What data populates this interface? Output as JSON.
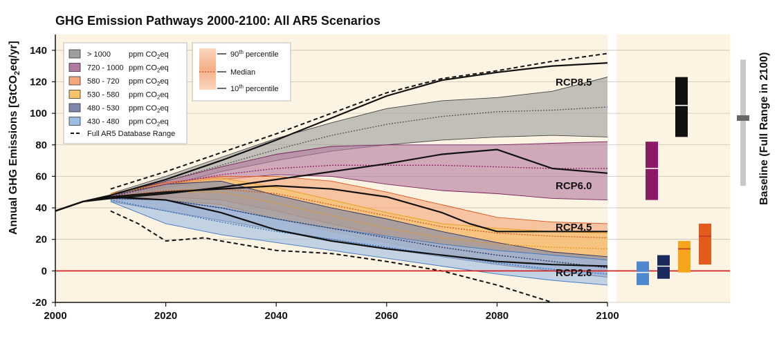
{
  "chart_data": {
    "type": "area",
    "title": "GHG Emission Pathways 2000-2100: All AR5 Scenarios",
    "ylabel": "Annual GHG Emissions [GtCO2eq/yr]",
    "ylabel_parts": {
      "pre": "Annual GHG Emissions [GtCO",
      "sub": "2",
      "post": "eq/yr]"
    },
    "right_label": "Baseline (Full Range in 2100)",
    "xlim": [
      2000,
      2100
    ],
    "ylim": [
      -20,
      150
    ],
    "xticks": [
      2000,
      2020,
      2040,
      2060,
      2080,
      2100
    ],
    "yticks": [
      -20,
      0,
      20,
      40,
      60,
      80,
      100,
      120,
      140
    ],
    "background": "#fdf3e3",
    "legend": {
      "placement": "top-left",
      "items": [
        {
          "range": "> 1000",
          "unit": "ppm CO",
          "sub": "2",
          "tail": "eq",
          "color": "#9e9e9e"
        },
        {
          "range": "720 - 1000",
          "unit": "ppm CO",
          "sub": "2",
          "tail": "eq",
          "color": "#b37aa1"
        },
        {
          "range": "580 - 720",
          "unit": "ppm CO",
          "sub": "2",
          "tail": "eq",
          "color": "#f4a77b"
        },
        {
          "range": "530 - 580",
          "unit": "ppm CO",
          "sub": "2",
          "tail": "eq",
          "color": "#f7c46a"
        },
        {
          "range": "480 - 530",
          "unit": "ppm CO",
          "sub": "2",
          "tail": "eq",
          "color": "#7d86ab"
        },
        {
          "range": "430 - 480",
          "unit": "ppm CO",
          "sub": "2",
          "tail": "eq",
          "color": "#9fbde4"
        }
      ],
      "db_range_label": "Full AR5 Database Range"
    },
    "percentile_legend": {
      "p90": {
        "pre": "90",
        "sup": "th",
        "post": " percentile"
      },
      "median": "Median",
      "p10": {
        "pre": "10",
        "sup": "th",
        "post": " percentile"
      }
    },
    "bands": [
      {
        "name": "> 1000 ppm CO2eq",
        "fill": "#9e9e9e",
        "edge": "#444444",
        "median_color": "#555555",
        "x": [
          2010,
          2020,
          2030,
          2040,
          2050,
          2060,
          2070,
          2080,
          2090,
          2100
        ],
        "upper": [
          49,
          60,
          72,
          84,
          94,
          103,
          108,
          110,
          114,
          123
        ],
        "lower": [
          46,
          54,
          63,
          70,
          76,
          80,
          83,
          85,
          86,
          85
        ],
        "median": [
          47,
          57,
          67,
          77,
          86,
          93,
          98,
          101,
          102,
          104
        ]
      },
      {
        "name": "720 - 1000 ppm CO2eq",
        "fill": "#b37aa1",
        "edge": "#7a1f5c",
        "median_color": "#8b1d66",
        "x": [
          2010,
          2020,
          2030,
          2040,
          2050,
          2060,
          2070,
          2080,
          2090,
          2100
        ],
        "upper": [
          48,
          57,
          66,
          74,
          79,
          80,
          80,
          80,
          81,
          82
        ],
        "lower": [
          46,
          53,
          58,
          61,
          60,
          55,
          51,
          49,
          46,
          45
        ],
        "median": [
          47,
          55,
          61,
          65,
          67,
          67,
          67,
          66,
          65,
          65
        ]
      },
      {
        "name": "580 - 720 ppm CO2eq",
        "fill": "#f4a77b",
        "edge": "#d9541d",
        "median_color": "#d9541d",
        "x": [
          2010,
          2020,
          2030,
          2040,
          2050,
          2060,
          2070,
          2080,
          2090,
          2100
        ],
        "upper": [
          49,
          56,
          60,
          60,
          57,
          50,
          42,
          34,
          31,
          30
        ],
        "lower": [
          45,
          47,
          45,
          38,
          30,
          22,
          14,
          10,
          8,
          7
        ],
        "median": [
          47,
          51,
          52,
          49,
          42,
          35,
          28,
          24,
          22,
          21
        ]
      },
      {
        "name": "530 - 580 ppm CO2eq",
        "fill": "#f7c46a",
        "edge": "#e89a1a",
        "median_color": "#e5971b",
        "x": [
          2010,
          2020,
          2030,
          2040,
          2050,
          2060,
          2070,
          2080,
          2090,
          2100
        ],
        "upper": [
          49,
          55,
          59,
          53,
          45,
          37,
          30,
          27,
          25,
          24
        ],
        "lower": [
          45,
          45,
          42,
          33,
          25,
          18,
          11,
          7,
          4,
          2
        ],
        "median": [
          47,
          50,
          50,
          43,
          35,
          27,
          21,
          17,
          15,
          14
        ]
      },
      {
        "name": "480 - 530 ppm CO2eq",
        "fill": "#7d86ab",
        "edge": "#2a335e",
        "median_color": "#1f2a5e",
        "x": [
          2010,
          2020,
          2030,
          2040,
          2050,
          2060,
          2070,
          2080,
          2090,
          2100
        ],
        "upper": [
          48,
          55,
          57,
          48,
          40,
          33,
          25,
          18,
          12,
          9
        ],
        "lower": [
          44,
          38,
          32,
          26,
          20,
          14,
          9,
          4,
          0,
          -4
        ],
        "median": [
          46,
          45,
          40,
          33,
          27,
          21,
          15,
          10,
          6,
          2
        ]
      },
      {
        "name": "430 - 480 ppm CO2eq",
        "fill": "#9fbde4",
        "edge": "#3b77c2",
        "median_color": "#2f6fbd",
        "x": [
          2010,
          2020,
          2030,
          2040,
          2050,
          2060,
          2070,
          2080,
          2090,
          2100
        ],
        "upper": [
          46,
          45,
          40,
          33,
          27,
          22,
          17,
          13,
          10,
          7
        ],
        "lower": [
          44,
          30,
          23,
          18,
          13,
          8,
          3,
          -2,
          -6,
          -9
        ],
        "median": [
          45,
          38,
          31,
          25,
          20,
          15,
          10,
          5,
          1,
          -2
        ]
      }
    ],
    "rcp_lines": [
      {
        "name": "RCP8.5",
        "x": [
          2000,
          2005,
          2010,
          2020,
          2030,
          2040,
          2050,
          2060,
          2070,
          2080,
          2090,
          2100
        ],
        "y": [
          38,
          44,
          48,
          58,
          70,
          83,
          97,
          111,
          121,
          126,
          130,
          132
        ]
      },
      {
        "name": "RCP6.0",
        "x": [
          2000,
          2005,
          2010,
          2020,
          2030,
          2040,
          2050,
          2060,
          2070,
          2080,
          2090,
          2100
        ],
        "y": [
          38,
          44,
          46,
          49,
          53,
          58,
          63,
          68,
          74,
          77,
          65,
          62
        ]
      },
      {
        "name": "RCP4.5",
        "x": [
          2000,
          2005,
          2010,
          2020,
          2030,
          2040,
          2050,
          2060,
          2070,
          2075,
          2080,
          2090,
          2100
        ],
        "y": [
          38,
          44,
          47,
          50,
          52,
          54,
          52,
          47,
          37,
          30,
          25,
          25,
          25
        ]
      },
      {
        "name": "RCP2.6",
        "x": [
          2000,
          2005,
          2010,
          2020,
          2030,
          2040,
          2050,
          2060,
          2070,
          2080,
          2090,
          2100
        ],
        "y": [
          38,
          44,
          47,
          45,
          37,
          26,
          19,
          14,
          10,
          6,
          4,
          3
        ]
      }
    ],
    "database_range": {
      "upper": {
        "x": [
          2010,
          2020,
          2030,
          2040,
          2050,
          2060,
          2070,
          2080,
          2090,
          2100
        ],
        "y": [
          52,
          63,
          75,
          87,
          100,
          113,
          122,
          127,
          133,
          138
        ]
      },
      "lower": {
        "x": [
          2010,
          2015,
          2020,
          2027,
          2030,
          2040,
          2050,
          2060,
          2070,
          2080,
          2090
        ],
        "y": [
          38,
          30,
          19,
          21,
          19,
          13,
          11,
          6,
          0,
          -9,
          -20
        ]
      }
    },
    "baseline_2100": {
      "min": 54,
      "max": 134,
      "median": 97,
      "color": "#c8c8c8"
    },
    "ranges_2100": [
      {
        "name": "430 - 480",
        "low": -9,
        "high": 6,
        "median": -1,
        "color": "#4e88cf"
      },
      {
        "name": "480 - 530",
        "low": -5,
        "high": 10,
        "median": 3,
        "color": "#1b2a5c"
      },
      {
        "name": "530 - 580",
        "low": -1,
        "high": 19,
        "median": 14,
        "color": "#f5a61b"
      },
      {
        "name": "580 - 720",
        "low": 4,
        "high": 30,
        "median": 22,
        "color": "#e35c1d"
      },
      {
        "name": "720 - 1000",
        "low": 45,
        "high": 82,
        "median": 65,
        "color": "#8a1b64"
      },
      {
        "name": "> 1000",
        "low": 85,
        "high": 123,
        "median": 105,
        "color": "#111111"
      }
    ],
    "zero_line_color": "#d62020"
  }
}
